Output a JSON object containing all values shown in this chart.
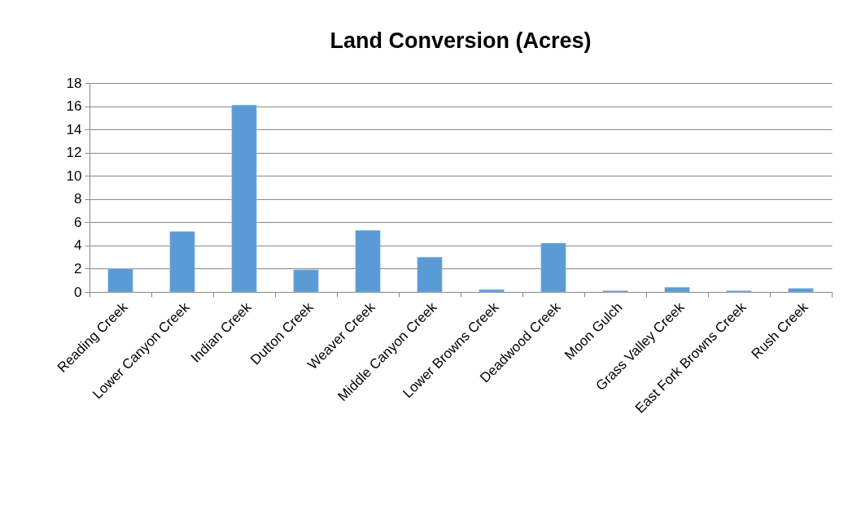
{
  "chart_data": {
    "type": "bar",
    "title": "Land Conversion (Acres)",
    "categories": [
      "Reading Creek",
      "Lower Canyon Creek",
      "Indian Creek",
      "Dutton Creek",
      "Weaver Creek",
      "Middle Canyon Creek",
      "Lower Browns Creek",
      "Deadwood Creek",
      "Moon Gulch",
      "Grass Valley Creek",
      "East Fork Browns Creek",
      "Rush Creek"
    ],
    "values": [
      2.0,
      5.2,
      16.1,
      1.9,
      5.3,
      3.0,
      0.2,
      4.2,
      0.1,
      0.4,
      0.1,
      0.3
    ],
    "color": "#5b9bd5",
    "ylim": [
      0,
      18
    ],
    "yticks": [
      0,
      2,
      4,
      6,
      8,
      10,
      12,
      14,
      16,
      18
    ],
    "grid": "y"
  }
}
